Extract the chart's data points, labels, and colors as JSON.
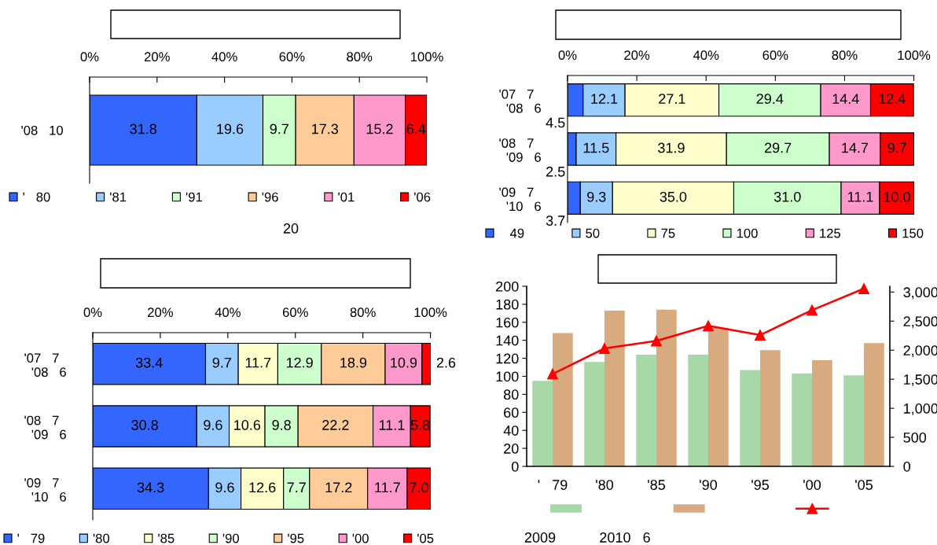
{
  "chart_data": [
    {
      "type": "bar",
      "orientation": "horizontal",
      "stacked": true,
      "categories": [
        "'08   10"
      ],
      "series": [
        {
          "name": "'   80",
          "color": "#3366ff",
          "values": [
            31.8
          ],
          "value_labels": [
            "31.8"
          ]
        },
        {
          "name": "'81",
          "color": "#99ccff",
          "values": [
            19.6
          ],
          "value_labels": [
            "19.6"
          ]
        },
        {
          "name": "'91",
          "color": "#ccffcc",
          "values": [
            9.7
          ],
          "value_labels": [
            "9.7"
          ]
        },
        {
          "name": "'96",
          "color": "#ffcc99",
          "values": [
            17.3
          ],
          "value_labels": [
            "17.3"
          ]
        },
        {
          "name": "'01",
          "color": "#ff99cc",
          "values": [
            15.2
          ],
          "value_labels": [
            "15.2"
          ]
        },
        {
          "name": "'06",
          "color": "#ff0000",
          "values": [
            6.4
          ],
          "value_labels": [
            "6.4"
          ]
        }
      ],
      "xlim": [
        0,
        100
      ],
      "xticks": [
        {
          "value": 0,
          "label": "0%"
        },
        {
          "value": 20,
          "label": "20%"
        },
        {
          "value": 40,
          "label": "40%"
        },
        {
          "value": 60,
          "label": "60%"
        },
        {
          "value": 80,
          "label": "80%"
        },
        {
          "value": 100,
          "label": "100%"
        }
      ],
      "legend": "bottom",
      "annotations": [
        "20"
      ]
    },
    {
      "type": "bar",
      "orientation": "horizontal",
      "stacked": true,
      "categories": [
        "'07   7\n  '08   6",
        "'08   7\n  '09   6",
        "'09   7\n  '10   6"
      ],
      "series": [
        {
          "name": "   49",
          "color": "#3366ff",
          "values": [
            4.5,
            2.5,
            3.7
          ],
          "value_labels": [
            "4.5",
            "2.5",
            "3.7"
          ]
        },
        {
          "name": "50",
          "color": "#99ccff",
          "values": [
            12.1,
            11.5,
            9.3
          ],
          "value_labels": [
            "12.1",
            "11.5",
            "9.3"
          ]
        },
        {
          "name": "75",
          "color": "#ffffcc",
          "values": [
            27.1,
            31.9,
            35.0
          ],
          "value_labels": [
            "27.1",
            "31.9",
            "35.0"
          ]
        },
        {
          "name": "100",
          "color": "#ccffcc",
          "values": [
            29.4,
            29.7,
            31.0
          ],
          "value_labels": [
            "29.4",
            "29.7",
            "31.0"
          ]
        },
        {
          "name": "125",
          "color": "#ff99cc",
          "values": [
            14.4,
            14.7,
            11.1
          ],
          "value_labels": [
            "14.4",
            "14.7",
            "11.1"
          ]
        },
        {
          "name": "150",
          "color": "#ff0000",
          "values": [
            12.4,
            9.7,
            10.0
          ],
          "value_labels": [
            "12.4",
            "9.7",
            "10.0"
          ]
        }
      ],
      "xlim": [
        0,
        100.1
      ],
      "xticks": [
        {
          "value": 0,
          "label": "0%"
        },
        {
          "value": 20,
          "label": "20%"
        },
        {
          "value": 40,
          "label": "40%"
        },
        {
          "value": 60,
          "label": "60%"
        },
        {
          "value": 80,
          "label": "80%"
        },
        {
          "value": 100,
          "label": "100%"
        }
      ],
      "legend": "bottom"
    },
    {
      "type": "bar",
      "orientation": "horizontal",
      "stacked": true,
      "categories": [
        "'07   7\n  '08   6",
        "'08   7\n  '09   6",
        "'09   7\n  '10   6"
      ],
      "series": [
        {
          "name": "'   79",
          "color": "#3366ff",
          "values": [
            33.4,
            30.8,
            34.3
          ],
          "value_labels": [
            "33.4",
            "30.8",
            "34.3"
          ]
        },
        {
          "name": "'80",
          "color": "#99ccff",
          "values": [
            9.7,
            9.6,
            9.6
          ],
          "value_labels": [
            "9.7",
            "9.6",
            "9.6"
          ]
        },
        {
          "name": "'85",
          "color": "#ffffcc",
          "values": [
            11.7,
            10.6,
            12.6
          ],
          "value_labels": [
            "11.7",
            "10.6",
            "12.6"
          ]
        },
        {
          "name": "'90",
          "color": "#ccffcc",
          "values": [
            12.9,
            9.8,
            7.7
          ],
          "value_labels": [
            "12.9",
            "9.8",
            "7.7"
          ]
        },
        {
          "name": "'95",
          "color": "#ffcc99",
          "values": [
            18.9,
            22.2,
            17.2
          ],
          "value_labels": [
            "18.9",
            "22.2",
            "17.2"
          ]
        },
        {
          "name": "'00",
          "color": "#ff99cc",
          "values": [
            10.9,
            11.1,
            11.7
          ],
          "value_labels": [
            "10.9",
            "11.1",
            "11.7"
          ]
        },
        {
          "name": "'05",
          "color": "#ff0000",
          "values": [
            2.6,
            5.8,
            7.0
          ],
          "value_labels": [
            "2.6",
            "5.8",
            "7.0"
          ]
        }
      ],
      "xlim": [
        0,
        100.1
      ],
      "xticks": [
        {
          "value": 0,
          "label": "0%"
        },
        {
          "value": 20,
          "label": "20%"
        },
        {
          "value": 40,
          "label": "40%"
        },
        {
          "value": 60,
          "label": "60%"
        },
        {
          "value": 80,
          "label": "80%"
        },
        {
          "value": 100,
          "label": "100%"
        }
      ],
      "legend": "bottom"
    },
    {
      "type": "bar",
      "categories": [
        "'   79",
        "'80",
        "'85",
        "'90",
        "'95",
        "'00",
        "'05"
      ],
      "series": [
        {
          "color": "#a8d8a8",
          "values": [
            95,
            116,
            124,
            124,
            107,
            103,
            101
          ]
        },
        {
          "color": "#d8aa80",
          "values": [
            148,
            173,
            174,
            154,
            129,
            118,
            137
          ]
        },
        {
          "type": "line",
          "axis": "y2",
          "color": "#ff0000",
          "marker": "triangle",
          "line_style": "solid",
          "values": [
            1590,
            2030,
            2160,
            2420,
            2260,
            2690,
            3060
          ]
        }
      ],
      "ylim": [
        0,
        200
      ],
      "yticks": [
        0,
        20,
        40,
        60,
        80,
        100,
        120,
        140,
        160,
        180,
        200
      ],
      "y2lim": [
        0,
        3100
      ],
      "y2ticks": [
        0,
        500,
        {
          "value": 1000,
          "label": "1,000"
        },
        {
          "value": 1500,
          "label": "1,500"
        },
        {
          "value": 2000,
          "label": "2,000"
        },
        {
          "value": 2500,
          "label": "2,500"
        },
        {
          "value": 3000,
          "label": "3,000"
        }
      ],
      "legend": "bottom",
      "annotations": [
        "2009",
        "2010   6"
      ]
    }
  ]
}
